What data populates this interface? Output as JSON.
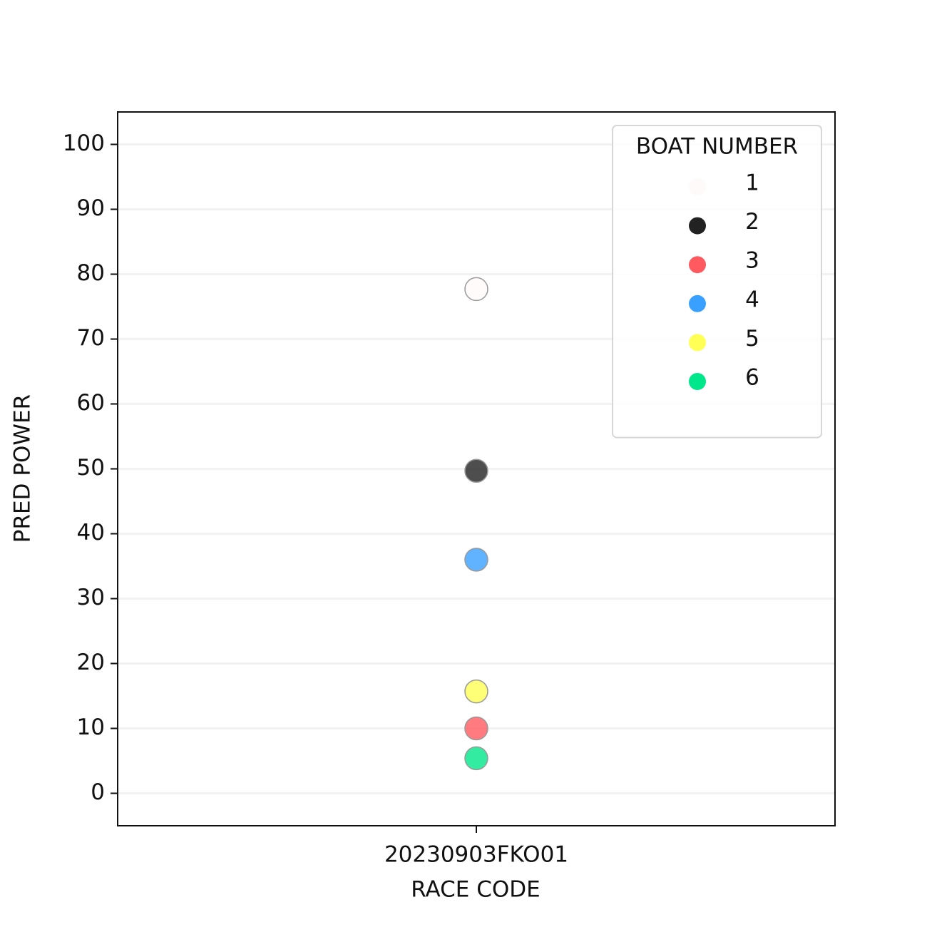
{
  "chart_data": {
    "type": "scatter",
    "x_label": "RACE CODE",
    "y_label": "PRED POWER",
    "categories": [
      "20230903FKO01"
    ],
    "legend_title": "BOAT NUMBER",
    "legend_loc": "upper right",
    "series": [
      {
        "name": "1",
        "color": "#fffafa",
        "values": [
          77.7
        ]
      },
      {
        "name": "2",
        "color": "#222222",
        "values": [
          49.7
        ]
      },
      {
        "name": "3",
        "color": "#ff5a5f",
        "values": [
          10.0
        ]
      },
      {
        "name": "4",
        "color": "#3aa0ff",
        "values": [
          36.0
        ]
      },
      {
        "name": "5",
        "color": "#ffff55",
        "values": [
          15.7
        ]
      },
      {
        "name": "6",
        "color": "#00e68a",
        "values": [
          5.4
        ]
      }
    ],
    "ylim": [
      -5,
      105
    ],
    "yticks": [
      0,
      10,
      20,
      30,
      40,
      50,
      60,
      70,
      80,
      90,
      100
    ],
    "grid": true
  }
}
